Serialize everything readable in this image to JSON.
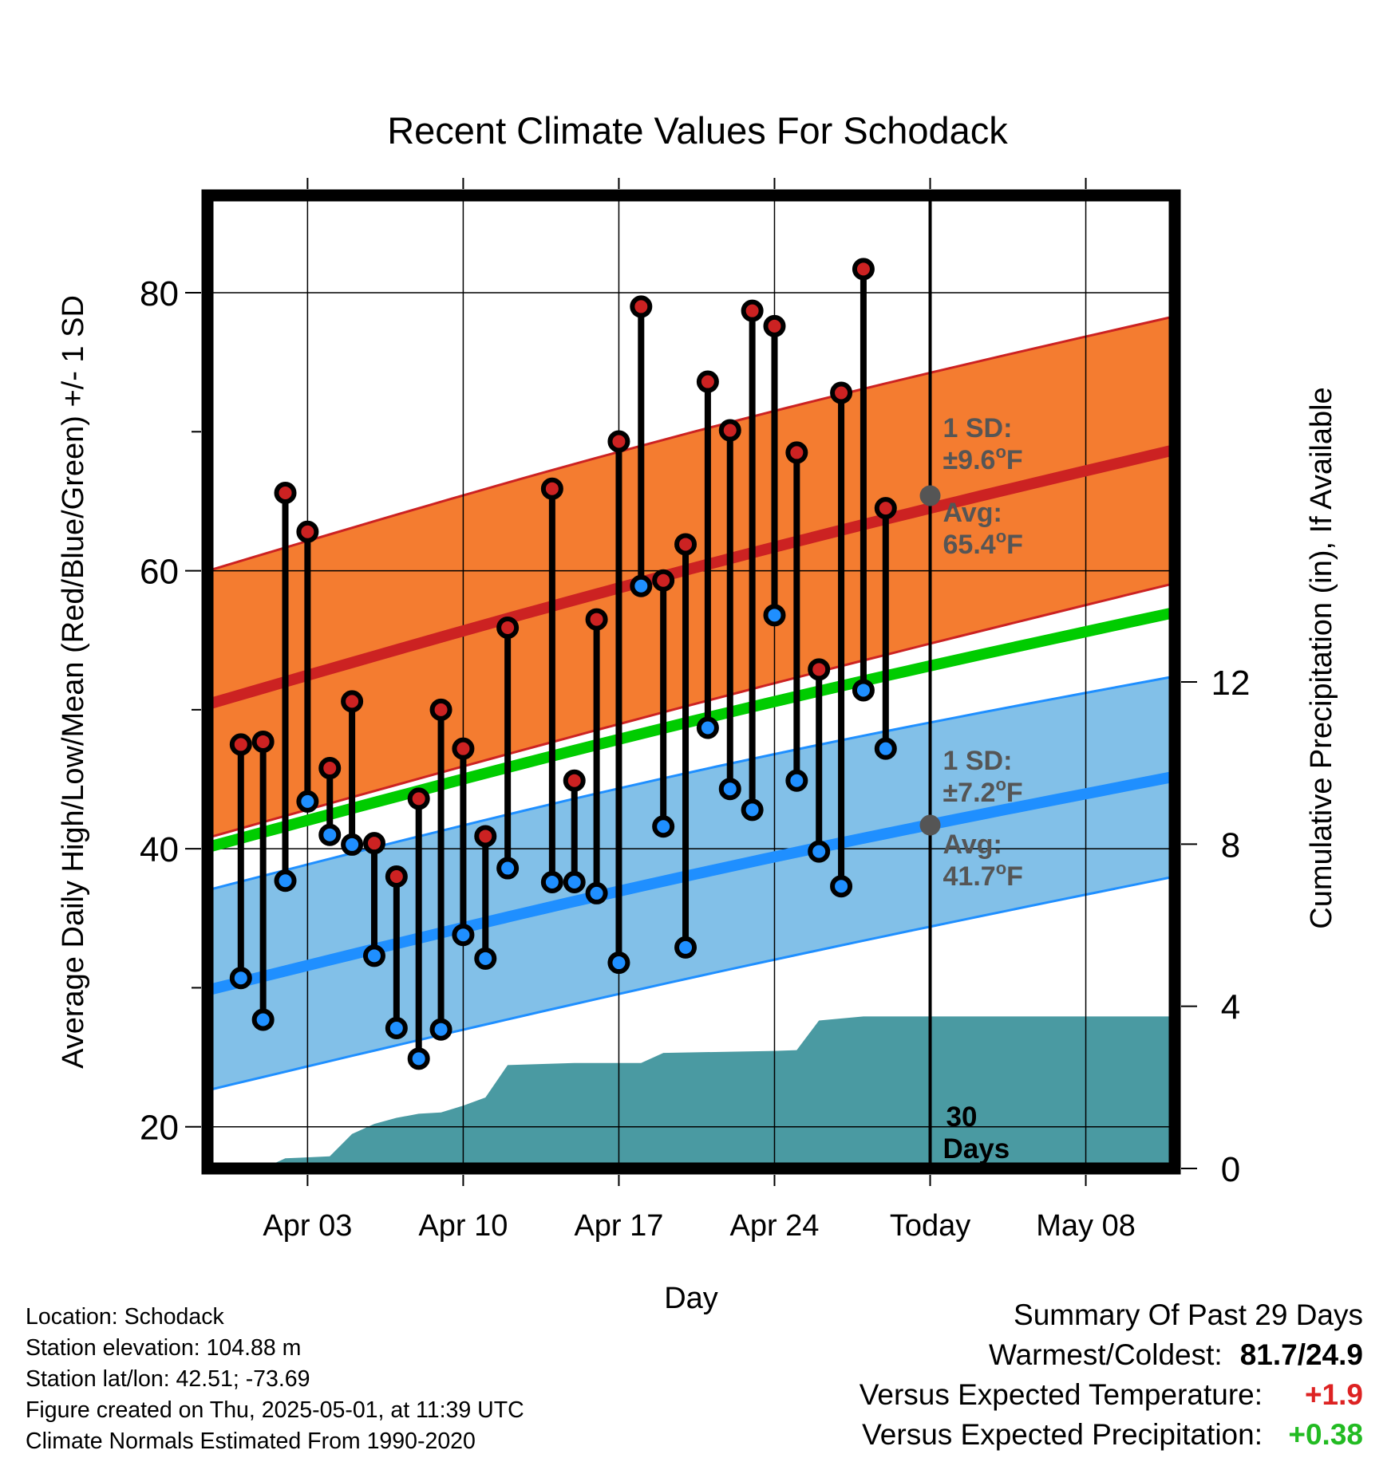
{
  "chart_data": {
    "type": "line",
    "title": "Recent Climate Values For Schodack",
    "xlabel": "Day",
    "ylabel": "Average Daily High/Low/Mean (Red/Blue/Green) +/- 1 SD",
    "y2label": "Cumulative Precipitation (in), If Available",
    "ylim": [
      17,
      87
    ],
    "y2lim": [
      0,
      24
    ],
    "xlim": [
      "2025-03-30T00:00",
      "2025-05-12T12:00"
    ],
    "x_ticks": [
      {
        "date": "2025-04-03",
        "label": "Apr 03"
      },
      {
        "date": "2025-04-10",
        "label": "Apr 10"
      },
      {
        "date": "2025-04-17",
        "label": "Apr 17"
      },
      {
        "date": "2025-04-24",
        "label": "Apr 24"
      },
      {
        "date": "2025-05-01",
        "label": "Today"
      },
      {
        "date": "2025-05-08",
        "label": "May 08"
      }
    ],
    "y_ticks": [
      20,
      40,
      60,
      80
    ],
    "y_minor_ticks": [
      30,
      50,
      70
    ],
    "y2_ticks": [
      0,
      4,
      8,
      12
    ],
    "grid": true,
    "today": "2025-05-01",
    "days": [
      "2025-03-31",
      "2025-04-01",
      "2025-04-02",
      "2025-04-03",
      "2025-04-04",
      "2025-04-05",
      "2025-04-06",
      "2025-04-07",
      "2025-04-08",
      "2025-04-09",
      "2025-04-10",
      "2025-04-11",
      "2025-04-12",
      "2025-04-13",
      "2025-04-14",
      "2025-04-15",
      "2025-04-16",
      "2025-04-17",
      "2025-04-18",
      "2025-04-19",
      "2025-04-20",
      "2025-04-21",
      "2025-04-22",
      "2025-04-23",
      "2025-04-24",
      "2025-04-25",
      "2025-04-26",
      "2025-04-27",
      "2025-04-28",
      "2025-04-29",
      "2025-04-30"
    ],
    "observed_high": [
      47.5,
      47.7,
      65.6,
      62.8,
      45.8,
      50.6,
      40.4,
      38.0,
      43.6,
      50.0,
      47.2,
      40.9,
      55.9,
      null,
      65.9,
      44.9,
      56.5,
      69.3,
      79.0,
      59.3,
      61.9,
      73.6,
      70.1,
      78.7,
      77.6,
      68.5,
      52.9,
      72.8,
      81.7,
      64.5,
      null
    ],
    "observed_low": [
      30.7,
      27.7,
      37.7,
      43.4,
      41.0,
      40.3,
      32.3,
      27.1,
      24.9,
      27.0,
      33.8,
      32.1,
      38.6,
      null,
      37.6,
      37.6,
      36.8,
      31.8,
      58.9,
      41.6,
      32.9,
      48.7,
      44.3,
      42.8,
      56.8,
      44.9,
      39.8,
      37.3,
      51.4,
      47.2,
      null
    ],
    "precip_days": [
      "2025-03-30",
      "2025-04-01",
      "2025-04-02",
      "2025-04-04",
      "2025-04-05",
      "2025-04-06",
      "2025-04-07",
      "2025-04-08",
      "2025-04-09",
      "2025-04-10",
      "2025-04-11",
      "2025-04-12",
      "2025-04-15",
      "2025-04-18",
      "2025-04-19",
      "2025-04-24",
      "2025-04-25",
      "2025-04-26",
      "2025-04-28",
      "2025-05-12"
    ],
    "cumulative_precip": [
      0.0,
      0.0,
      0.25,
      0.3,
      0.85,
      1.1,
      1.25,
      1.35,
      1.38,
      1.55,
      1.75,
      2.55,
      2.6,
      2.6,
      2.85,
      2.9,
      2.92,
      3.65,
      3.75,
      3.75
    ],
    "series": [
      {
        "name": "Avg",
        "kind": "normal_high",
        "days": [
          "2025-03-30",
          "2025-05-12"
        ],
        "values": [
          50.6,
          68.7
        ],
        "sd": 9.6,
        "color": "#cc2222",
        "band_color": "#f47c30"
      },
      {
        "name": "Avg",
        "kind": "normal_low",
        "days": [
          "2025-03-30",
          "2025-05-12"
        ],
        "values": [
          30.0,
          45.2
        ],
        "sd": 7.2,
        "color": "#1f8fff",
        "band_color": "#82c0e8"
      },
      {
        "kind": "normal_mean",
        "days": [
          "2025-03-30",
          "2025-05-12"
        ],
        "values": [
          40.3,
          57.0
        ],
        "color": "#00cc00"
      }
    ],
    "colors": {
      "high_marker": "#cc2222",
      "low_marker": "#1f8fff",
      "precip_fill": "#4a9aa2",
      "annotation": "#555555"
    },
    "annotations": {
      "high_sd_label": "1 SD:",
      "high_sd_value": "±9.6",
      "low_sd_label": "1 SD:",
      "low_sd_value": "±7.2",
      "high_avg_label": "Avg:",
      "high_avg_value": "65.4",
      "low_avg_label": "Avg:",
      "low_avg_value": "41.7",
      "high_avg_today": 65.4,
      "low_avg_today": 41.7,
      "degree": "o",
      "unit": "F",
      "period_number": "30",
      "period_word": "Days"
    }
  },
  "footer": {
    "location": "Location: Schodack",
    "elevation": "Station elevation: 104.88 m",
    "latlon": "Station lat/lon: 42.51; -73.69",
    "created": "Figure created on Thu, 2025-05-01, at 11:39 UTC",
    "normals": "Climate Normals Estimated From 1990-2020"
  },
  "summary": {
    "heading": "Summary Of Past 29 Days",
    "warm_cold_label": "Warmest/Coldest:",
    "warm_cold_value": "81.7/24.9",
    "temp_label": "Versus Expected Temperature:",
    "temp_value": "+1.9",
    "temp_color": "#dd2222",
    "precip_label": "Versus Expected Precipitation:",
    "precip_value": "+0.38",
    "precip_color": "#22bb22"
  }
}
